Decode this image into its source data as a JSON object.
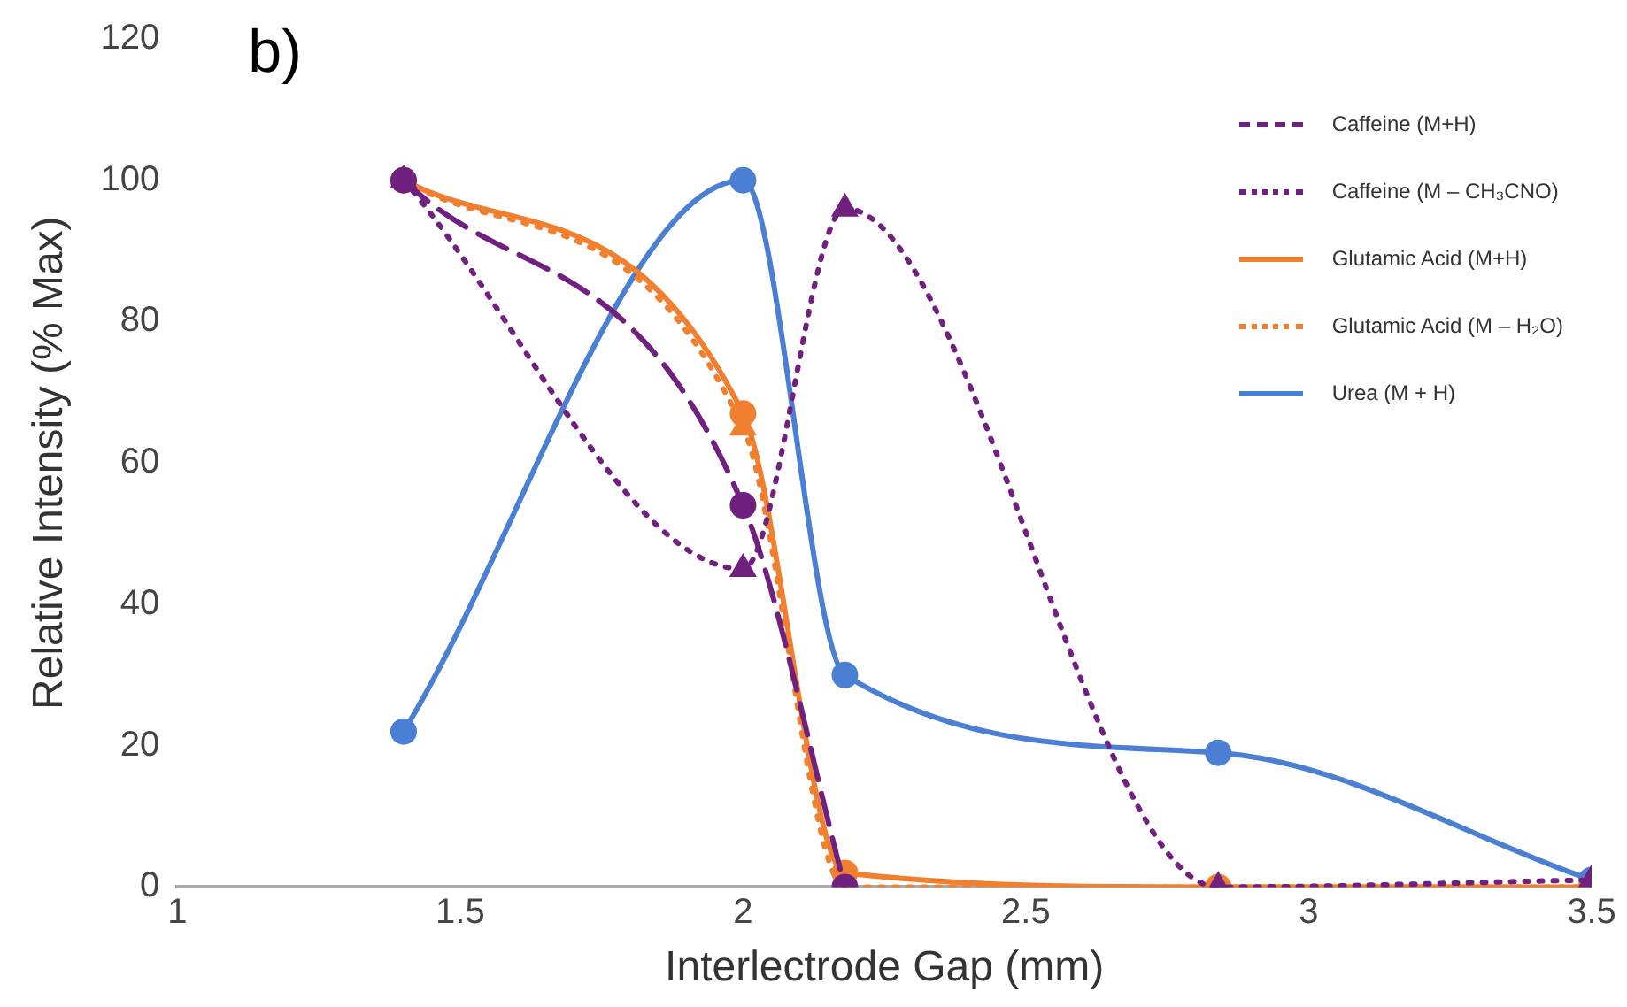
{
  "chart_data": {
    "type": "line",
    "xlabel": "Interlectrode Gap (mm)",
    "ylabel": "Relative Intensity (% Max)",
    "annotations": [
      "b)"
    ],
    "x": [
      1.4,
      2.0,
      2.18,
      2.84,
      3.5
    ],
    "xlim": [
      1,
      3.5
    ],
    "xticks": [
      1,
      1.5,
      2,
      2.5,
      3,
      3.5
    ],
    "ylim": [
      0,
      120
    ],
    "yticks": [
      0,
      20,
      40,
      60,
      80,
      100,
      120
    ],
    "grid": false,
    "legend": "top right",
    "series": [
      {
        "name": "Caffeine (M+H)",
        "color": "#70207e",
        "values": [
          100,
          54,
          0,
          null,
          null
        ],
        "marker": "circle",
        "line_style": "dashed"
      },
      {
        "name": "Caffeine (M – CH₃CNO)",
        "color": "#70207e",
        "values": [
          100,
          45,
          96,
          0,
          1
        ],
        "marker": "triangle",
        "line_style": "dotted"
      },
      {
        "name": "Glutamic Acid (M+H)",
        "color": "#f08030",
        "values": [
          100,
          67,
          2,
          0,
          0
        ],
        "marker": "circle",
        "line_style": "solid"
      },
      {
        "name": "Glutamic Acid (M – H₂O)",
        "color": "#f08030",
        "values": [
          100,
          65,
          0,
          0,
          0
        ],
        "marker": "triangle",
        "line_style": "dotted"
      },
      {
        "name": "Urea (M + H)",
        "color": "#4a7fd4",
        "values": [
          22,
          100,
          30,
          19,
          1
        ],
        "marker": "circle",
        "line_style": "solid"
      }
    ]
  }
}
